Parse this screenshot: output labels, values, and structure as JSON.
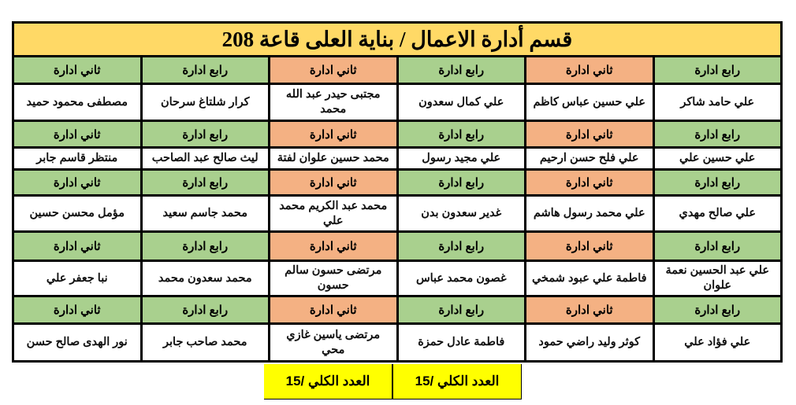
{
  "title": "قسم أدارة الاعمال / بناية العلى قاعة 208",
  "colors": {
    "title_bg": "#ffd966",
    "rabe_bg": "#a9d08e",
    "thani_bg": "#f4b183",
    "total_bg": "#ffff00"
  },
  "columns": [
    {
      "grade": "رابع ادارة",
      "color": "green"
    },
    {
      "grade": "ثاني ادارة",
      "color": "salmon"
    },
    {
      "grade": "رابع ادارة",
      "color": "green"
    },
    {
      "grade": "ثاني ادارة",
      "color": "salmon"
    },
    {
      "grade": "رابع ادارة",
      "color": "green"
    },
    {
      "grade": "ثاني ادارة",
      "color": "green"
    }
  ],
  "rows": [
    {
      "names": [
        "علي حامد شاكر",
        "علي حسين عباس كاظم",
        "علي كمال سعدون",
        "مجتبى حيدر عبد الله محمد",
        "كرار شلتاغ سرحان",
        "مصطفى محمود حميد"
      ]
    },
    {
      "names": [
        "علي حسين علي",
        "علي فلح حسن ارحيم",
        "علي مجيد رسول",
        "محمد حسين علوان لفتة",
        "ليث صالح عبد الصاحب",
        "منتظر قاسم جابر"
      ]
    },
    {
      "names": [
        "علي صالح مهدي",
        "علي محمد رسول هاشم",
        "غدير سعدون بدن",
        "محمد عبد الكريم محمد علي",
        "محمد جاسم سعيد",
        "مؤمل محسن حسين"
      ]
    },
    {
      "names": [
        "علي عبد الحسين نعمة علوان",
        "فاطمة علي عبود شمخي",
        "غصون محمد عباس",
        "مرتضى حسون سالم حسون",
        "محمد سعدون محمد",
        "نبا جعفر علي"
      ]
    },
    {
      "names": [
        "علي فؤاد علي",
        "كوثر وليد راضي حمود",
        "فاطمة عادل حمزة",
        "مرتضى ياسين غازي محي",
        "محمد صاحب جابر",
        "نور الهدى صالح حسن"
      ]
    }
  ],
  "totals": [
    "العدد الكلي /15",
    "العدد الكلي /15"
  ]
}
